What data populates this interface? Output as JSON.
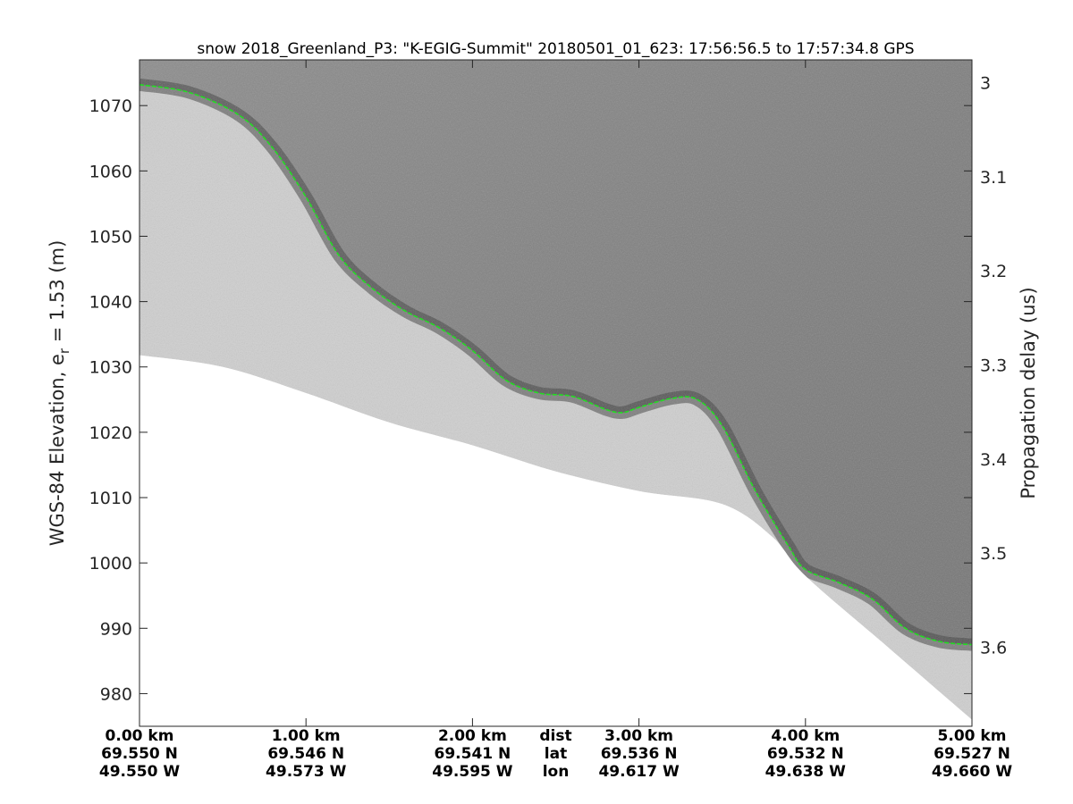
{
  "chart_data": {
    "type": "heatmap",
    "title": "snow 2018_Greenland_P3: \"K-EGIG-Summit\"  20180501_01_623: 17:56:56.5 to 17:57:34.8 GPS",
    "ylabel_left_main": "WGS-84 Elevation, e",
    "ylabel_left_sub": "r",
    "ylabel_left_tail": " = 1.53 (m)",
    "ylabel_right": "Propagation delay (us)",
    "x_range_km": [
      0,
      5.0
    ],
    "ylim": [
      975,
      1077
    ],
    "y_ticks": [
      980,
      990,
      1000,
      1010,
      1020,
      1030,
      1040,
      1050,
      1060,
      1070
    ],
    "right_ticks": [
      {
        "label": "3",
        "elevation": 1073.5
      },
      {
        "label": "3.1",
        "elevation": 1059.1
      },
      {
        "label": "3.2",
        "elevation": 1044.7
      },
      {
        "label": "3.3",
        "elevation": 1030.3
      },
      {
        "label": "3.4",
        "elevation": 1015.9
      },
      {
        "label": "3.5",
        "elevation": 1001.5
      },
      {
        "label": "3.6",
        "elevation": 987.1
      }
    ],
    "x_ticks": [
      {
        "km": 0.0,
        "dist": "0.00 km",
        "lat": "69.550 N",
        "lon": "49.550 W"
      },
      {
        "km": 1.0,
        "dist": "1.00 km",
        "lat": "69.546 N",
        "lon": "49.573 W"
      },
      {
        "km": 2.0,
        "dist": "2.00 km",
        "lat": "69.541 N",
        "lon": "49.595 W"
      },
      {
        "km": 3.0,
        "dist": "3.00 km",
        "lat": "69.536 N",
        "lon": "49.617 W"
      },
      {
        "km": 4.0,
        "dist": "4.00 km",
        "lat": "69.532 N",
        "lon": "49.638 W"
      },
      {
        "km": 5.0,
        "dist": "5.00 km",
        "lat": "69.527 N",
        "lon": "49.660 W"
      }
    ],
    "x_row_labels": {
      "dist": "dist",
      "lat": "lat",
      "lon": "lon"
    },
    "x_row_labels_km": 2.5,
    "surface_line": {
      "color": "#22dd22",
      "x_km": [
        0.0,
        0.3,
        0.6,
        0.8,
        1.0,
        1.2,
        1.4,
        1.6,
        1.8,
        2.0,
        2.2,
        2.4,
        2.6,
        2.8,
        2.9,
        3.0,
        3.2,
        3.35,
        3.5,
        3.7,
        3.9,
        4.0,
        4.2,
        4.4,
        4.6,
        4.8,
        5.0
      ],
      "elevation_m": [
        1073.2,
        1072.0,
        1068.5,
        1063.5,
        1056.0,
        1047.0,
        1042.0,
        1038.5,
        1036.0,
        1032.5,
        1028.0,
        1026.0,
        1025.5,
        1023.5,
        1023.0,
        1023.8,
        1025.2,
        1025.0,
        1021.0,
        1011.0,
        1002.5,
        999.0,
        997.0,
        994.5,
        990.0,
        988.0,
        987.5
      ]
    },
    "data_bottom": {
      "x_km": [
        0.0,
        0.5,
        1.0,
        1.5,
        2.0,
        2.5,
        3.0,
        3.5,
        3.8,
        4.0,
        4.5,
        5.0
      ],
      "elevation_m": [
        1031.8,
        1030.0,
        1026.0,
        1021.5,
        1018.0,
        1014.0,
        1011.0,
        1009.0,
        1004.0,
        998.0,
        987.0,
        976.0
      ]
    },
    "colormap": "gray",
    "grid": false
  }
}
